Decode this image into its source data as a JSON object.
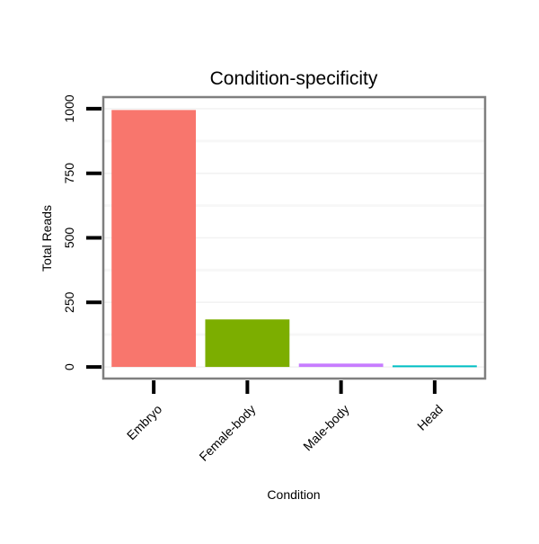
{
  "chart_data": {
    "type": "bar",
    "title": "Condition-specificity",
    "xlabel": "Condition",
    "ylabel": "Total Reads",
    "categories": [
      "Embryo",
      "Female-body",
      "Male-body",
      "Head"
    ],
    "values": [
      995,
      184,
      13,
      6
    ],
    "colors": [
      "#F8766D",
      "#7CAE00",
      "#C77CFF",
      "#00BFC4"
    ],
    "ylim": [
      -45,
      1045
    ],
    "yticks": [
      0,
      250,
      500,
      750,
      1000
    ],
    "ytick_labels": [
      "0",
      "250",
      "500",
      "750",
      "1000"
    ],
    "grid": true,
    "legend": "none"
  }
}
